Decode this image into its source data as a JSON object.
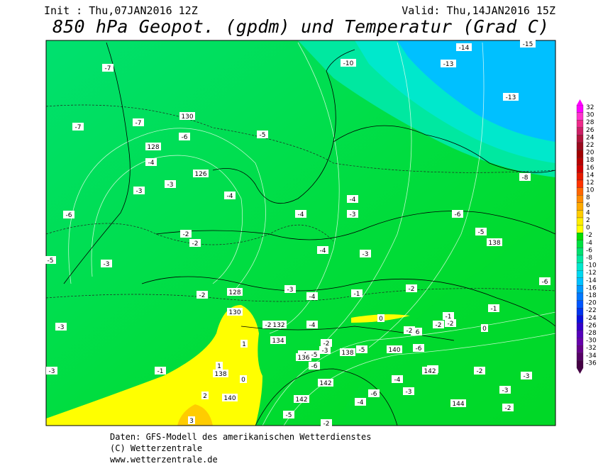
{
  "header": {
    "init": "Init : Thu,07JAN2016 12Z",
    "valid": "Valid: Thu,14JAN2016 15Z",
    "title": "850 hPa Geopot. (gpdm) und Temperatur (Grad C)"
  },
  "footer": {
    "source": "Daten: GFS-Modell des amerikanischen Wetterdienstes",
    "copyright": "(C) Wetterzentrale",
    "url": "www.wetterzentrale.de"
  },
  "colorbar": {
    "levels": [
      32,
      30,
      28,
      26,
      24,
      22,
      20,
      18,
      16,
      14,
      12,
      10,
      8,
      6,
      4,
      2,
      0,
      -2,
      -4,
      -6,
      -8,
      -10,
      -12,
      -14,
      -16,
      -18,
      -20,
      -22,
      -24,
      -26,
      -28,
      -30,
      -32,
      -34,
      -36
    ],
    "colors": [
      "#ff00ff",
      "#ff33cc",
      "#ee2a8a",
      "#cc1f66",
      "#b0143c",
      "#9a0a1e",
      "#a00000",
      "#b80000",
      "#d00000",
      "#e61a00",
      "#ff3300",
      "#ff6600",
      "#ff8c00",
      "#ffaa00",
      "#ffcc00",
      "#ffee00",
      "#ffff00",
      "#00dd00",
      "#00e040",
      "#00e070",
      "#00e8a0",
      "#00e8cc",
      "#00d8f0",
      "#00c0ff",
      "#0099ff",
      "#0077ff",
      "#0055ff",
      "#0033ee",
      "#0a10dd",
      "#3300cc",
      "#5500bb",
      "#6600aa",
      "#660088",
      "#550066",
      "#440044"
    ]
  },
  "temperature_labels": [
    -7,
    -7,
    -7,
    -6,
    -4,
    -3,
    -3,
    -6,
    -4,
    -5,
    -2,
    -2,
    -5,
    -3,
    -4,
    -4,
    -3,
    -4,
    -3,
    -2,
    -3,
    -4,
    -1,
    -2,
    0,
    -1,
    -2,
    -2,
    0,
    -1,
    -6,
    -5,
    -8,
    -6,
    -10,
    -14,
    -13,
    -15,
    -13,
    -3,
    -3,
    -1,
    1,
    1,
    0,
    2,
    3,
    -2,
    -4,
    -2,
    -3,
    -5,
    -4,
    -6,
    -5,
    -6,
    -6,
    -2,
    -4,
    -4,
    -3,
    -6,
    -4,
    -2,
    -3,
    -3,
    -2,
    -5,
    -2
  ],
  "geopotential_labels": [
    130,
    128,
    126,
    128,
    130,
    132,
    134,
    136,
    138,
    140,
    138,
    142,
    142,
    142,
    140,
    138,
    144
  ]
}
